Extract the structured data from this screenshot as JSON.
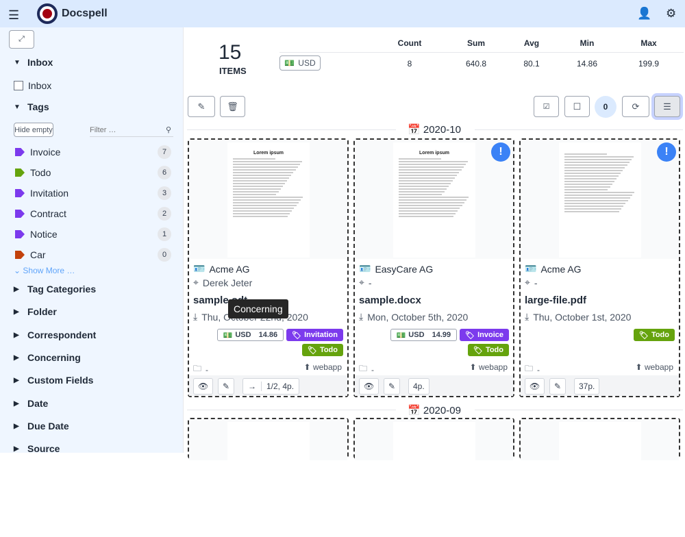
{
  "header": {
    "title": "Docspell",
    "menu_icon": "hamburger-icon",
    "user_icon": "user-icon",
    "settings_icon": "cogs-icon"
  },
  "sidebar": {
    "inbox_section": "Inbox",
    "inbox_checkbox": "Inbox",
    "tags_section": "Tags",
    "hide_empty": "Hide empty",
    "filter_placeholder": "Filter …",
    "tags": [
      {
        "label": "Invoice",
        "count": "7",
        "color": "#7c3aed"
      },
      {
        "label": "Todo",
        "count": "6",
        "color": "#65a30d"
      },
      {
        "label": "Invitation",
        "count": "3",
        "color": "#7c3aed"
      },
      {
        "label": "Contract",
        "count": "2",
        "color": "#7c3aed"
      },
      {
        "label": "Notice",
        "count": "1",
        "color": "#7c3aed"
      },
      {
        "label": "Car",
        "count": "0",
        "color": "#c2410c"
      }
    ],
    "show_more": "Show More …",
    "sections": [
      "Tag Categories",
      "Folder",
      "Correspondent",
      "Concerning",
      "Custom Fields",
      "Date",
      "Due Date",
      "Source"
    ]
  },
  "summary": {
    "count": "15",
    "items_label": "ITEMS",
    "currency": "USD",
    "headers": [
      "Count",
      "Sum",
      "Avg",
      "Min",
      "Max"
    ],
    "values": [
      "8",
      "640.8",
      "80.1",
      "14.86",
      "199.9"
    ]
  },
  "toolbar": {
    "selected_count": "0"
  },
  "groups": [
    {
      "label": "2020-10"
    },
    {
      "label": "2020-09"
    }
  ],
  "cards": [
    {
      "correspondent": "Acme AG",
      "concerning": "Derek Jeter",
      "name": "sample.odt",
      "date": "Thu, October 22nd, 2020",
      "amount_currency": "USD",
      "amount": "14.86",
      "tags": [
        {
          "label": "Invitation",
          "color": "#7c3aed"
        },
        {
          "label": "Todo",
          "color": "#65a30d"
        }
      ],
      "folder": "-",
      "source": "webapp",
      "pages": "1/2, 4p.",
      "alert": false,
      "preview_title": "Lorem ipsum"
    },
    {
      "correspondent": "EasyCare AG",
      "concerning": "-",
      "name": "sample.docx",
      "date": "Mon, October 5th, 2020",
      "amount_currency": "USD",
      "amount": "14.99",
      "tags": [
        {
          "label": "Invoice",
          "color": "#7c3aed"
        },
        {
          "label": "Todo",
          "color": "#65a30d"
        }
      ],
      "folder": "-",
      "source": "webapp",
      "pages": "4p.",
      "alert": true,
      "preview_title": "Lorem ipsum"
    },
    {
      "correspondent": "Acme AG",
      "concerning": "-",
      "name": "large-file.pdf",
      "date": "Thu, October 1st, 2020",
      "tags": [
        {
          "label": "Todo",
          "color": "#65a30d"
        }
      ],
      "folder": "-",
      "source": "webapp",
      "pages": "37p.",
      "alert": true,
      "preview_title": ""
    }
  ],
  "tooltip": "Concerning"
}
